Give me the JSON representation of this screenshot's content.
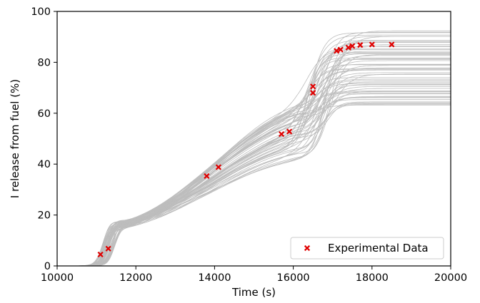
{
  "chart_data": {
    "type": "scatter",
    "title": "",
    "xlabel": "Time (s)",
    "ylabel": "I release from fuel (%)",
    "xlim": [
      10000,
      20000
    ],
    "ylim": [
      0,
      100
    ],
    "xticks": [
      10000,
      12000,
      14000,
      16000,
      18000,
      20000
    ],
    "yticks": [
      0,
      20,
      40,
      60,
      80,
      100
    ],
    "grid": false,
    "legend_position": "bottom-right",
    "colors": {
      "ensemble": "#bdbdbd",
      "experimental": "#e00000"
    },
    "ensemble": {
      "count": 60,
      "description": "gray sensitivity curves",
      "final_value_range": [
        63,
        92
      ]
    },
    "series": [
      {
        "name": "Experimental Data",
        "marker": "x",
        "points": [
          {
            "x": 11100,
            "y": 4.5
          },
          {
            "x": 11300,
            "y": 6.8
          },
          {
            "x": 13800,
            "y": 35.3
          },
          {
            "x": 14100,
            "y": 38.8
          },
          {
            "x": 15700,
            "y": 51.8
          },
          {
            "x": 15900,
            "y": 52.8
          },
          {
            "x": 16500,
            "y": 68.0
          },
          {
            "x": 16500,
            "y": 70.5
          },
          {
            "x": 17100,
            "y": 84.5
          },
          {
            "x": 17200,
            "y": 85.0
          },
          {
            "x": 17400,
            "y": 85.8
          },
          {
            "x": 17500,
            "y": 86.4
          },
          {
            "x": 17700,
            "y": 86.8
          },
          {
            "x": 18000,
            "y": 87.0
          },
          {
            "x": 18500,
            "y": 87.0
          }
        ]
      }
    ]
  }
}
